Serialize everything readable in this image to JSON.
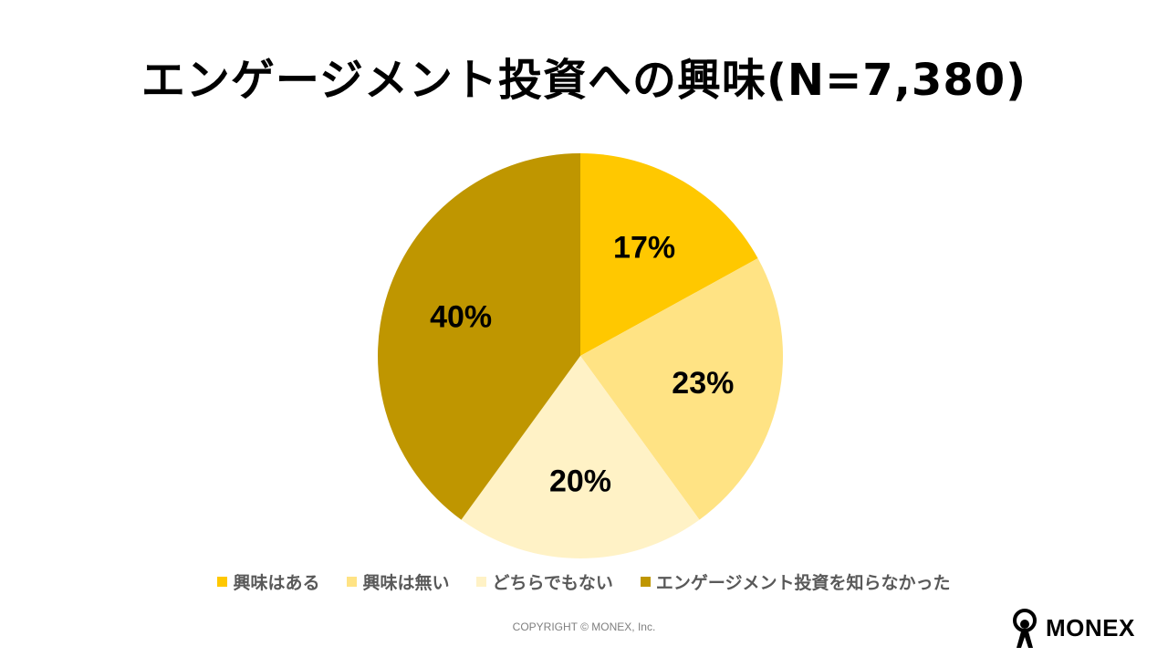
{
  "page": {
    "copyright": "COPYRIGHT © MONEX, Inc.",
    "logo_text": "MONEX"
  },
  "chart_data": {
    "type": "pie",
    "title": "エンゲージメント投資への興味(N=7,380)",
    "slices": [
      {
        "name": "興味はある",
        "value": 17,
        "label": "17%",
        "color": "#FFC800"
      },
      {
        "name": "興味は無い",
        "value": 23,
        "label": "23%",
        "color": "#FFE384"
      },
      {
        "name": "どちらでもない",
        "value": 20,
        "label": "20%",
        "color": "#FFF2C6"
      },
      {
        "name": "エンゲージメント投資を知らなかった",
        "value": 40,
        "label": "40%",
        "color": "#BF9600"
      }
    ],
    "legend_position": "bottom"
  }
}
